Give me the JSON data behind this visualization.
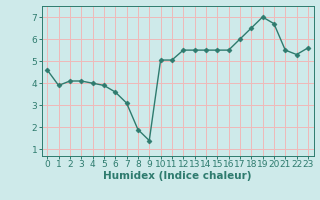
{
  "x": [
    0,
    1,
    2,
    3,
    4,
    5,
    6,
    7,
    8,
    9,
    10,
    11,
    12,
    13,
    14,
    15,
    16,
    17,
    18,
    19,
    20,
    21,
    22,
    23
  ],
  "y": [
    4.6,
    3.9,
    4.1,
    4.1,
    4.0,
    3.9,
    3.6,
    3.1,
    1.9,
    1.4,
    5.05,
    5.05,
    5.5,
    5.5,
    5.5,
    5.5,
    5.5,
    6.0,
    6.5,
    7.0,
    6.7,
    5.5,
    5.3,
    5.6
  ],
  "line_color": "#2e7b6e",
  "marker": "D",
  "marker_size": 2.5,
  "bg_color": "#ceeaea",
  "grid_color": "#f0b8b8",
  "xlabel": "Humidex (Indice chaleur)",
  "xlim": [
    -0.5,
    23.5
  ],
  "ylim": [
    0.7,
    7.5
  ],
  "yticks": [
    1,
    2,
    3,
    4,
    5,
    6,
    7
  ],
  "xticks": [
    0,
    1,
    2,
    3,
    4,
    5,
    6,
    7,
    8,
    9,
    10,
    11,
    12,
    13,
    14,
    15,
    16,
    17,
    18,
    19,
    20,
    21,
    22,
    23
  ],
  "xlabel_fontsize": 7.5,
  "tick_fontsize": 6.5,
  "line_width": 1.0
}
